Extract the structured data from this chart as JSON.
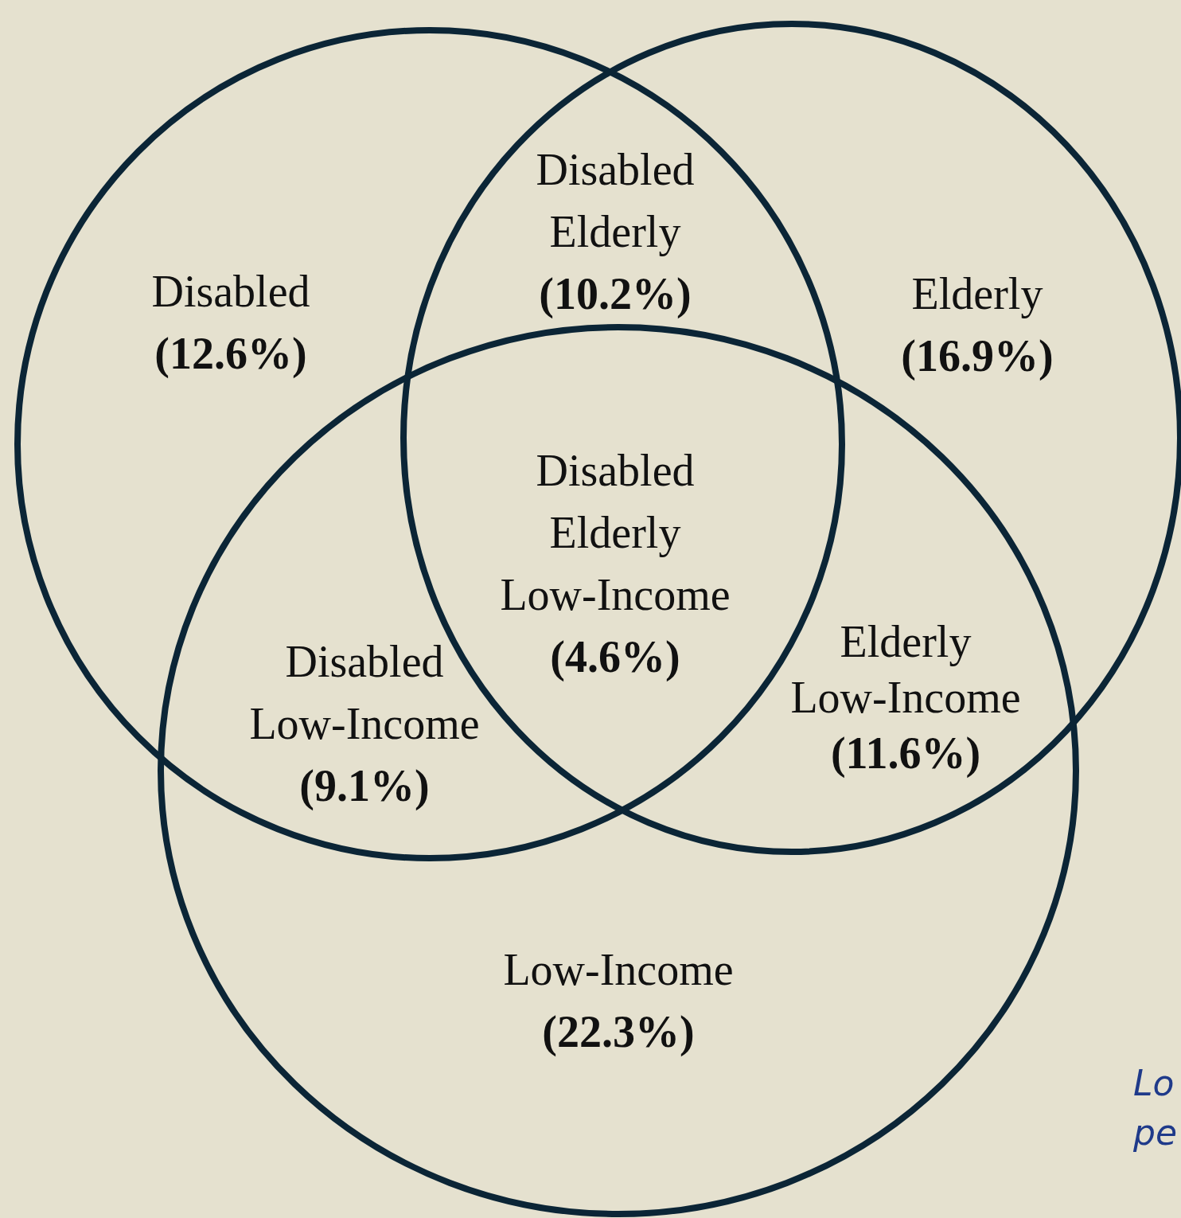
{
  "chart_data": {
    "type": "other",
    "categories": [
      "Disabled",
      "Elderly",
      "Low-Income",
      "Disabled Elderly",
      "Disabled Low-Income",
      "Elderly Low-Income",
      "Disabled Elderly Low-Income"
    ],
    "values": [
      12.6,
      16.9,
      22.3,
      10.2,
      9.1,
      11.6,
      4.6
    ],
    "value_labels": [
      "(12.6%)",
      "(16.9%)",
      "(22.3%)",
      "(10.2%)",
      "(9.1%)",
      "(11.6%)",
      "(4.6%)"
    ],
    "annotations": [
      {
        "text": "Lo"
      },
      {
        "text": "pe"
      }
    ]
  }
}
